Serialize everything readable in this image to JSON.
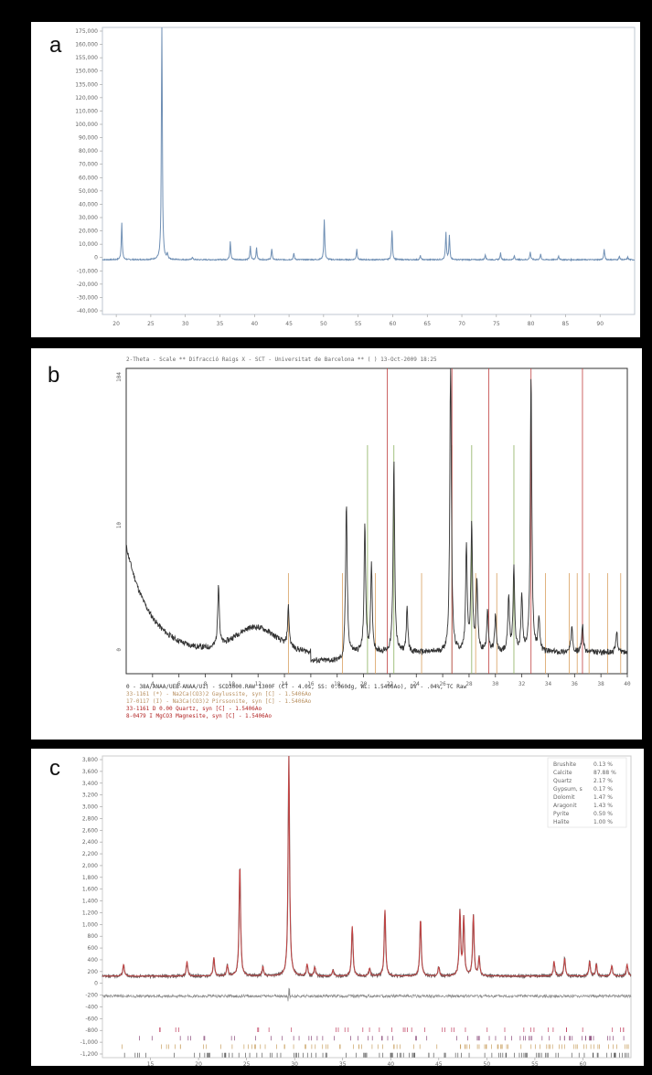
{
  "panels": {
    "a": {
      "label": "a"
    },
    "b": {
      "label": "b"
    },
    "c": {
      "label": "c"
    }
  },
  "chart_data": [
    {
      "id": "a",
      "type": "line",
      "xlim": [
        18,
        95
      ],
      "x_ticks": [
        20,
        25,
        30,
        35,
        40,
        45,
        50,
        55,
        60,
        65,
        70,
        75,
        80,
        85,
        90
      ],
      "ylim": [
        -40000,
        175000
      ],
      "y_ticks": [
        "175,000",
        "160,000",
        "155,000",
        "150,000",
        "135,000",
        "120,000",
        "110,000",
        "100,000",
        "90,000",
        "80,000",
        "70,000",
        "60,000",
        "50,000",
        "40,000",
        "30,000",
        "20,000",
        "10,000",
        "0",
        "-10,000",
        "-20,000",
        "-30,000",
        "-40,000"
      ],
      "baseline": 1000,
      "color": "#6f8fb4",
      "peaks": [
        [
          20.8,
          28000
        ],
        [
          26.6,
          178000
        ],
        [
          27.4,
          4000
        ],
        [
          31.0,
          2000
        ],
        [
          36.5,
          14000
        ],
        [
          39.4,
          10000
        ],
        [
          40.3,
          9000
        ],
        [
          42.5,
          8000
        ],
        [
          45.7,
          5000
        ],
        [
          50.1,
          30000
        ],
        [
          54.8,
          8000
        ],
        [
          59.9,
          22000
        ],
        [
          64.0,
          3000
        ],
        [
          67.7,
          20000
        ],
        [
          68.2,
          18000
        ],
        [
          73.4,
          4000
        ],
        [
          75.6,
          5000
        ],
        [
          77.6,
          3000
        ],
        [
          79.9,
          6000
        ],
        [
          81.4,
          4000
        ],
        [
          84.0,
          3000
        ],
        [
          90.6,
          8000
        ],
        [
          92.8,
          2500
        ],
        [
          94.0,
          2000
        ]
      ]
    },
    {
      "id": "b",
      "type": "line",
      "xlim": [
        2,
        40
      ],
      "x_ticks": [
        4,
        6,
        8,
        10,
        12,
        14,
        16,
        18,
        20,
        22,
        24,
        26,
        28,
        30,
        32,
        34,
        36,
        38,
        40
      ],
      "y_ticks": [
        "104",
        "10",
        "0"
      ],
      "color": "#333333",
      "header": "2-Theta - Scale  ** Difracció Raigs X - SCT - Universitat de Barcelona ** (   ) 13-Oct-2009 18:25",
      "caption": [
        {
          "text": "0 - 38A/ANAA/UEB-ANAA/U1) - SCD3000.RAW  1300F (CT - 4.0s, SS: 0.060dg, WL: 1.5406Ao), DV - .04%, TC  Raw",
          "color": "#333333"
        },
        {
          "text": "33-1161 (*) - Na2Ca(CO3)2 Gaylussite, syn [C] - 1.5406Ao",
          "color": "#b89060"
        },
        {
          "text": "17-0117 (I) - Na3Ca(CO3)2 Pirssonite, syn [C] - 1.5406Ao",
          "color": "#b89060"
        },
        {
          "text": "33-1161 D 0.00 Quartz, syn [C] - 1.5406Ao",
          "color": "#b02020"
        },
        {
          "text": "8-0479 I MgCO3 Magnesite, syn [C] - 1.5406Ao",
          "color": "#b02020"
        }
      ],
      "peaks": [
        [
          9.0,
          90
        ],
        [
          14.3,
          55
        ],
        [
          18.7,
          210
        ],
        [
          20.1,
          180
        ],
        [
          20.6,
          120
        ],
        [
          22.3,
          270
        ],
        [
          23.3,
          60
        ],
        [
          26.6,
          420
        ],
        [
          27.8,
          150
        ],
        [
          28.2,
          180
        ],
        [
          28.6,
          100
        ],
        [
          29.4,
          60
        ],
        [
          30.0,
          50
        ],
        [
          31.0,
          80
        ],
        [
          31.4,
          120
        ],
        [
          32.0,
          80
        ],
        [
          32.7,
          390
        ],
        [
          33.3,
          50
        ],
        [
          35.8,
          40
        ],
        [
          36.6,
          40
        ],
        [
          39.2,
          30
        ]
      ],
      "ref_lines_green": [
        20.3,
        22.3,
        26.7,
        28.2,
        31.4
      ],
      "ref_lines_orange": [
        14.3,
        18.4,
        20.9,
        24.4,
        28.5,
        30.1,
        33.8,
        35.6,
        36.2,
        37.1,
        38.5,
        39.5
      ],
      "ref_lines_red": [
        21.8,
        26.7,
        29.5,
        32.7,
        36.6
      ]
    },
    {
      "id": "c",
      "type": "line",
      "xlim": [
        10,
        65
      ],
      "x_ticks": [
        15,
        20,
        25,
        30,
        35,
        40,
        45,
        50,
        55,
        60
      ],
      "ylim": [
        -1200,
        3800
      ],
      "y_ticks": [
        "3,800",
        "3,600",
        "3,400",
        "3,200",
        "3,000",
        "2,800",
        "2,600",
        "2,400",
        "2,200",
        "2,000",
        "1,800",
        "1,600",
        "1,400",
        "1,200",
        "1,000",
        "800",
        "600",
        "400",
        "200",
        "0",
        "-200",
        "-400",
        "-600",
        "-800",
        "-1,000",
        "-1,200"
      ],
      "baseline": 150,
      "obs_color": "#6a5a5a",
      "calc_color": "#d04040",
      "diff_color": "#8f8f8f",
      "peaks": [
        [
          12.2,
          200
        ],
        [
          18.8,
          250
        ],
        [
          21.6,
          310
        ],
        [
          23.0,
          180
        ],
        [
          24.3,
          1850
        ],
        [
          26.7,
          160
        ],
        [
          29.4,
          3650
        ],
        [
          31.3,
          200
        ],
        [
          32.1,
          150
        ],
        [
          34.0,
          100
        ],
        [
          36.0,
          830
        ],
        [
          37.8,
          130
        ],
        [
          39.4,
          1100
        ],
        [
          43.1,
          950
        ],
        [
          45.0,
          150
        ],
        [
          47.2,
          1050
        ],
        [
          47.6,
          950
        ],
        [
          48.6,
          1000
        ],
        [
          49.2,
          300
        ],
        [
          57.0,
          250
        ],
        [
          58.1,
          300
        ],
        [
          60.7,
          250
        ],
        [
          61.4,
          200
        ],
        [
          63.0,
          180
        ],
        [
          64.6,
          200
        ],
        [
          65.6,
          150
        ]
      ],
      "legend": [
        {
          "name": "Brushite",
          "value": "0.13 %",
          "color": "#555555"
        },
        {
          "name": "Calcite",
          "value": "87.88 %",
          "color": "#555555"
        },
        {
          "name": "Quartz",
          "value": "2.17 %",
          "color": "#c9b080"
        },
        {
          "name": "Gypsum, s",
          "value": "0.17 %",
          "color": "#c9b080"
        },
        {
          "name": "Dolomit",
          "value": "1.47 %",
          "color": "#555555"
        },
        {
          "name": "Aragonit",
          "value": "1.43 %",
          "color": "#555555"
        },
        {
          "name": "Pyrite",
          "value": "0.50 %",
          "color": "#555555"
        },
        {
          "name": "Halite",
          "value": "1.00 %",
          "color": "#c9b080"
        }
      ]
    }
  ]
}
